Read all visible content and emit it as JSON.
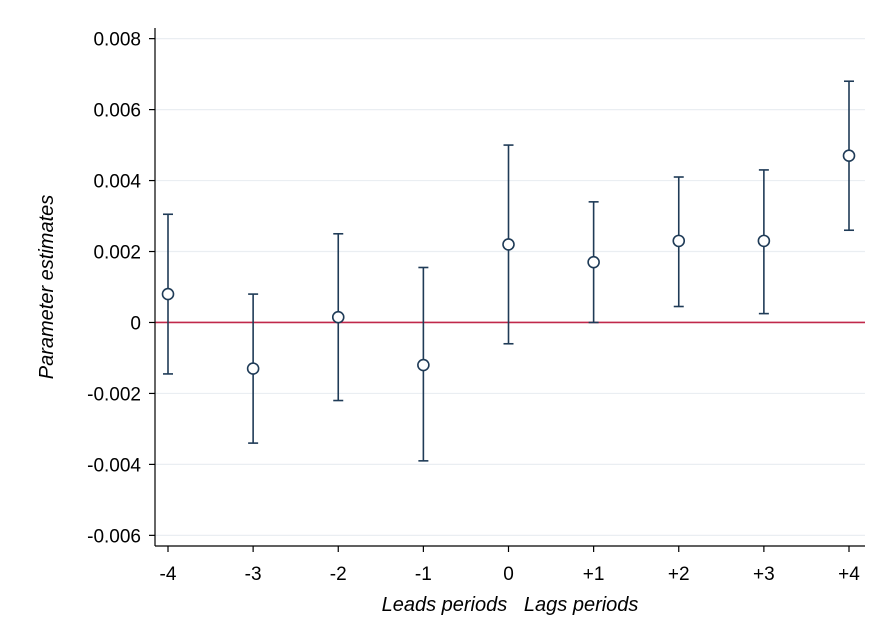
{
  "chart_data": {
    "type": "scatter",
    "title": "",
    "xlabel": "Leads periods   Lags periods",
    "ylabel": "Parameter estimates",
    "categories": [
      "-4",
      "-3",
      "-2",
      "-1",
      "0",
      "+1",
      "+2",
      "+3",
      "+4"
    ],
    "series": [
      {
        "values": [
          0.0008,
          -0.0013,
          0.00015,
          -0.0012,
          0.0022,
          0.0017,
          0.0023,
          0.0023,
          0.0047
        ],
        "ci_low": [
          -0.00145,
          -0.0034,
          -0.0022,
          -0.0039,
          -0.0006,
          0.0,
          0.00045,
          0.00025,
          0.0026
        ],
        "ci_high": [
          0.00305,
          0.0008,
          0.0025,
          0.00155,
          0.005,
          0.0034,
          0.0041,
          0.0043,
          0.0068
        ]
      }
    ],
    "yticks": [
      "0.008",
      "0.006",
      "0.004",
      "0.002",
      "0",
      "-0.002",
      "-0.004",
      "-0.006"
    ],
    "ytick_values": [
      0.008,
      0.006,
      0.004,
      0.002,
      0,
      -0.002,
      -0.004,
      -0.006
    ],
    "ylim": [
      -0.0063,
      0.0083
    ],
    "reference_line_y": 0,
    "grid": true,
    "legend": "none",
    "colors": {
      "markers": "#1f3b57",
      "reference_line": "#c0284a",
      "grid": "#eaeef2",
      "axis": "#000000"
    }
  }
}
